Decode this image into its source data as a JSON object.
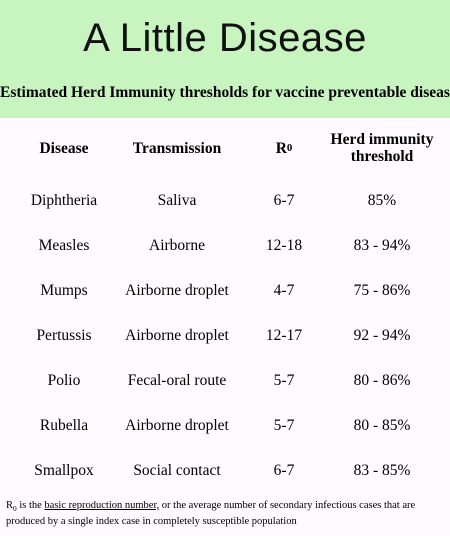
{
  "banner": {
    "title": "A Little Disease"
  },
  "subtitle": "Estimated Herd Immunity thresholds for vaccine preventable diseases",
  "table": {
    "headers": {
      "disease": "Disease",
      "transmission": "Transmission",
      "r0_main": "R",
      "r0_sub": "0",
      "threshold": "Herd immunity threshold"
    },
    "rows": [
      {
        "disease": "Diphtheria",
        "transmission": "Saliva",
        "r0": "6-7",
        "threshold": "85%"
      },
      {
        "disease": "Measles",
        "transmission": "Airborne",
        "r0": "12-18",
        "threshold": "83 - 94%"
      },
      {
        "disease": "Mumps",
        "transmission": "Airborne droplet",
        "r0": "4-7",
        "threshold": "75 - 86%"
      },
      {
        "disease": "Pertussis",
        "transmission": "Airborne droplet",
        "r0": "12-17",
        "threshold": "92 - 94%"
      },
      {
        "disease": "Polio",
        "transmission": "Fecal-oral route",
        "r0": "5-7",
        "threshold": "80 - 86%"
      },
      {
        "disease": "Rubella",
        "transmission": "Airborne droplet",
        "r0": "5-7",
        "threshold": "80 - 85%"
      },
      {
        "disease": "Smallpox",
        "transmission": "Social contact",
        "r0": "6-7",
        "threshold": "83 - 85%"
      }
    ]
  },
  "footnote": {
    "r_main": "R",
    "r_sub": "0",
    "part1": " is the ",
    "link": "basic reproduction number,",
    "part2": " or the average number of secondary infectious cases that are produced by a single index case in completely susceptible population"
  }
}
